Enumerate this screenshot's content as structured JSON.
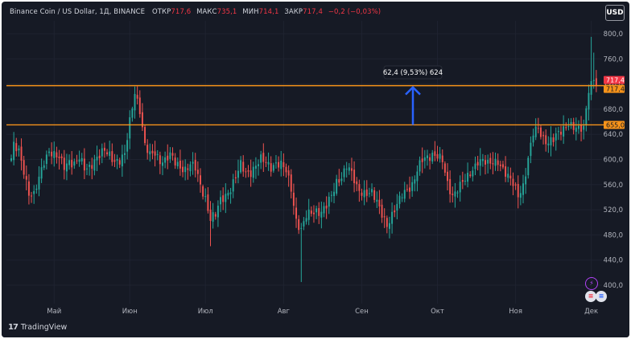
{
  "header": {
    "symbol": "Binance Coin / US Dollar, 1Д, BINANCE",
    "open_label": "ОТКР",
    "open_value": "717,6",
    "high_label": "МАКС",
    "high_value": "735,1",
    "low_label": "МИН",
    "low_value": "714,1",
    "close_label": "ЗАКР",
    "close_value": "717,4",
    "change": "−0,2 (−0,03%)"
  },
  "currency_button": "USD",
  "measure_label": "62,4 (9,53%) 624",
  "price_tags": {
    "last_1": "717,4",
    "last_2": "717,4",
    "level_low": "655,0"
  },
  "footer": {
    "brand": "TradingView"
  },
  "colors": {
    "background": "#161a25",
    "up": "#26a69a",
    "down": "#ef5350",
    "level_line": "#f7931a",
    "measure_arrow": "#2962ff",
    "text": "#d1d4dc"
  },
  "chart_data": {
    "type": "candlestick",
    "ylim": [
      380,
      820
    ],
    "y_ticks": [
      {
        "value": 800,
        "label": "800,0"
      },
      {
        "value": 760,
        "label": "760,0"
      },
      {
        "value": 720,
        "label": "720,0"
      },
      {
        "value": 680,
        "label": "680,0"
      },
      {
        "value": 640,
        "label": "640,0"
      },
      {
        "value": 600,
        "label": "600,0"
      },
      {
        "value": 560,
        "label": "560,0"
      },
      {
        "value": 520,
        "label": "520,0"
      },
      {
        "value": 480,
        "label": "480,0"
      },
      {
        "value": 440,
        "label": "440,0"
      },
      {
        "value": 400,
        "label": "400,0"
      }
    ],
    "x_ticks": [
      {
        "index": 17,
        "label": "Май"
      },
      {
        "index": 47,
        "label": "Июн"
      },
      {
        "index": 77,
        "label": "Июл"
      },
      {
        "index": 108,
        "label": "Авг"
      },
      {
        "index": 139,
        "label": "Сен"
      },
      {
        "index": 169,
        "label": "Окт"
      },
      {
        "index": 200,
        "label": "Ноя"
      },
      {
        "index": 230,
        "label": "Дек"
      }
    ],
    "horizontal_levels": [
      717.4,
      655.0
    ],
    "measure": {
      "from": 655.0,
      "to": 717.4,
      "text": "62,4 (9,53%) 624"
    },
    "keypoints": [
      [
        0,
        598
      ],
      [
        1,
        620
      ],
      [
        3,
        615
      ],
      [
        5,
        585
      ],
      [
        7,
        545
      ],
      [
        9,
        540
      ],
      [
        11,
        570
      ],
      [
        13,
        600
      ],
      [
        15,
        615
      ],
      [
        17,
        605
      ],
      [
        19,
        600
      ],
      [
        21,
        590
      ],
      [
        23,
        600
      ],
      [
        25,
        592
      ],
      [
        27,
        600
      ],
      [
        29,
        585
      ],
      [
        31,
        590
      ],
      [
        33,
        600
      ],
      [
        35,
        605
      ],
      [
        37,
        612
      ],
      [
        39,
        608
      ],
      [
        41,
        600
      ],
      [
        43,
        598
      ],
      [
        45,
        605
      ],
      [
        47,
        660
      ],
      [
        49,
        710
      ],
      [
        51,
        680
      ],
      [
        53,
        620
      ],
      [
        55,
        605
      ],
      [
        57,
        612
      ],
      [
        59,
        600
      ],
      [
        61,
        598
      ],
      [
        63,
        605
      ],
      [
        65,
        595
      ],
      [
        67,
        590
      ],
      [
        69,
        585
      ],
      [
        71,
        590
      ],
      [
        73,
        585
      ],
      [
        75,
        560
      ],
      [
        77,
        540
      ],
      [
        79,
        505
      ],
      [
        81,
        510
      ],
      [
        83,
        535
      ],
      [
        85,
        545
      ],
      [
        87,
        555
      ],
      [
        89,
        570
      ],
      [
        91,
        590
      ],
      [
        93,
        580
      ],
      [
        95,
        582
      ],
      [
        97,
        590
      ],
      [
        99,
        598
      ],
      [
        101,
        595
      ],
      [
        103,
        590
      ],
      [
        105,
        595
      ],
      [
        107,
        590
      ],
      [
        109,
        580
      ],
      [
        111,
        555
      ],
      [
        113,
        505
      ],
      [
        115,
        487
      ],
      [
        117,
        508
      ],
      [
        119,
        515
      ],
      [
        121,
        520
      ],
      [
        123,
        518
      ],
      [
        125,
        525
      ],
      [
        127,
        540
      ],
      [
        129,
        565
      ],
      [
        131,
        575
      ],
      [
        133,
        590
      ],
      [
        135,
        575
      ],
      [
        137,
        555
      ],
      [
        139,
        550
      ],
      [
        141,
        548
      ],
      [
        143,
        545
      ],
      [
        145,
        530
      ],
      [
        147,
        515
      ],
      [
        149,
        498
      ],
      [
        151,
        510
      ],
      [
        153,
        525
      ],
      [
        155,
        545
      ],
      [
        157,
        555
      ],
      [
        159,
        560
      ],
      [
        161,
        580
      ],
      [
        163,
        598
      ],
      [
        165,
        605
      ],
      [
        167,
        610
      ],
      [
        169,
        605
      ],
      [
        171,
        595
      ],
      [
        173,
        560
      ],
      [
        175,
        545
      ],
      [
        177,
        555
      ],
      [
        179,
        562
      ],
      [
        181,
        570
      ],
      [
        183,
        585
      ],
      [
        185,
        600
      ],
      [
        187,
        598
      ],
      [
        189,
        590
      ],
      [
        191,
        595
      ],
      [
        193,
        600
      ],
      [
        195,
        585
      ],
      [
        197,
        570
      ],
      [
        199,
        560
      ],
      [
        201,
        545
      ],
      [
        203,
        560
      ],
      [
        205,
        600
      ],
      [
        207,
        640
      ],
      [
        209,
        650
      ],
      [
        211,
        635
      ],
      [
        213,
        628
      ],
      [
        215,
        630
      ],
      [
        217,
        640
      ],
      [
        219,
        650
      ],
      [
        221,
        660
      ],
      [
        223,
        650
      ],
      [
        225,
        645
      ],
      [
        227,
        650
      ],
      [
        229,
        715
      ],
      [
        231,
        730
      ],
      [
        232,
        717.4
      ]
    ]
  }
}
